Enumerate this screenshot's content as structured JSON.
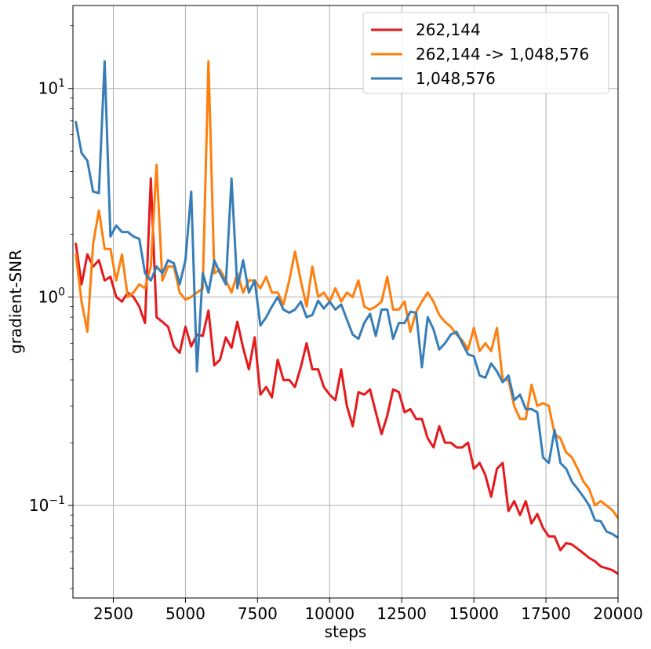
{
  "chart_data": {
    "type": "line",
    "xlabel": "steps",
    "ylabel": "gradient-SNR",
    "xlim": [
      1100,
      20000
    ],
    "ylim": [
      0.036,
      25
    ],
    "yscale": "log",
    "grid": true,
    "legend_position": "top-right",
    "x_ticks": [
      2500,
      5000,
      7500,
      10000,
      12500,
      15000,
      17500,
      20000
    ],
    "x_tick_labels": [
      "2500",
      "5000",
      "7500",
      "10000",
      "12500",
      "15000",
      "17500",
      "20000"
    ],
    "y_ticks": [
      0.1,
      1,
      10
    ],
    "y_tick_labels": [
      {
        "base": "10",
        "exp": "−1"
      },
      {
        "base": "10",
        "exp": "0"
      },
      {
        "base": "10",
        "exp": "1"
      }
    ],
    "x": [
      1200,
      1400,
      1600,
      1800,
      2000,
      2200,
      2400,
      2600,
      2800,
      3000,
      3200,
      3400,
      3600,
      3800,
      4000,
      4200,
      4400,
      4600,
      4800,
      5000,
      5200,
      5400,
      5600,
      5800,
      6000,
      6200,
      6400,
      6600,
      6800,
      7000,
      7200,
      7400,
      7600,
      7800,
      8000,
      8200,
      8400,
      8600,
      8800,
      9000,
      9200,
      9400,
      9600,
      9800,
      10000,
      10200,
      10400,
      10600,
      10800,
      11000,
      11200,
      11400,
      11600,
      11800,
      12000,
      12200,
      12400,
      12600,
      12800,
      13000,
      13200,
      13400,
      13600,
      13800,
      14000,
      14200,
      14400,
      14600,
      14800,
      15000,
      15200,
      15400,
      15600,
      15800,
      16000,
      16200,
      16400,
      16600,
      16800,
      17000,
      17200,
      17400,
      17600,
      17800,
      18000,
      18200,
      18400,
      18600,
      18800,
      19000,
      19200,
      19400,
      19600,
      19800,
      20000
    ],
    "series": [
      {
        "name": "262,144",
        "color": "#e41a1c",
        "values": [
          1.8,
          1.15,
          1.6,
          1.4,
          1.5,
          1.2,
          1.25,
          1.0,
          0.95,
          1.05,
          1.0,
          0.9,
          0.75,
          3.7,
          0.8,
          0.76,
          0.72,
          0.58,
          0.54,
          0.72,
          0.58,
          0.66,
          0.65,
          0.86,
          0.47,
          0.5,
          0.64,
          0.57,
          0.76,
          0.57,
          0.45,
          0.64,
          0.34,
          0.37,
          0.33,
          0.5,
          0.4,
          0.4,
          0.37,
          0.46,
          0.6,
          0.45,
          0.45,
          0.37,
          0.34,
          0.32,
          0.45,
          0.3,
          0.24,
          0.35,
          0.34,
          0.36,
          0.28,
          0.22,
          0.27,
          0.36,
          0.35,
          0.28,
          0.29,
          0.26,
          0.26,
          0.21,
          0.19,
          0.24,
          0.2,
          0.2,
          0.19,
          0.19,
          0.2,
          0.15,
          0.16,
          0.14,
          0.11,
          0.15,
          0.16,
          0.094,
          0.105,
          0.09,
          0.105,
          0.082,
          0.091,
          0.078,
          0.071,
          0.071,
          0.061,
          0.066,
          0.065,
          0.062,
          0.059,
          0.056,
          0.054,
          0.051,
          0.05,
          0.049,
          0.047
        ]
      },
      {
        "name": "262,144 -> 1,048,576",
        "color": "#ff7f0e",
        "values": [
          1.6,
          0.95,
          0.68,
          1.8,
          2.6,
          1.7,
          1.7,
          1.2,
          1.6,
          1.0,
          1.05,
          1.15,
          1.1,
          1.4,
          4.3,
          1.2,
          1.4,
          1.4,
          1.05,
          0.97,
          1.0,
          1.05,
          1.1,
          13.5,
          1.3,
          1.35,
          1.2,
          1.05,
          1.3,
          1.05,
          1.2,
          1.2,
          1.1,
          1.25,
          1.05,
          1.05,
          0.92,
          1.2,
          1.65,
          1.2,
          0.9,
          1.4,
          1.0,
          1.05,
          0.95,
          1.1,
          0.95,
          1.05,
          1.0,
          1.2,
          0.9,
          0.87,
          0.9,
          0.95,
          1.25,
          0.87,
          0.87,
          0.95,
          0.68,
          0.85,
          0.95,
          1.05,
          0.95,
          0.82,
          0.76,
          0.72,
          0.66,
          0.62,
          0.56,
          0.71,
          0.55,
          0.6,
          0.55,
          0.71,
          0.4,
          0.4,
          0.3,
          0.26,
          0.26,
          0.38,
          0.3,
          0.31,
          0.3,
          0.22,
          0.21,
          0.18,
          0.17,
          0.15,
          0.13,
          0.12,
          0.1,
          0.105,
          0.1,
          0.095,
          0.087
        ]
      },
      {
        "name": "1,048,576",
        "color": "#377eb8",
        "values": [
          6.9,
          4.9,
          4.5,
          3.2,
          3.15,
          13.5,
          1.95,
          2.2,
          2.05,
          2.05,
          1.95,
          1.9,
          1.3,
          1.2,
          1.4,
          1.3,
          1.5,
          1.45,
          1.15,
          1.5,
          3.2,
          0.44,
          1.3,
          1.05,
          1.5,
          1.3,
          1.15,
          3.7,
          1.1,
          1.5,
          1.05,
          1.2,
          0.73,
          0.8,
          0.9,
          1.0,
          0.87,
          0.84,
          0.87,
          0.95,
          0.8,
          0.82,
          0.96,
          0.88,
          0.95,
          0.87,
          0.92,
          0.78,
          0.66,
          0.63,
          0.75,
          0.83,
          0.65,
          0.87,
          0.87,
          0.63,
          0.75,
          0.75,
          0.85,
          0.84,
          0.46,
          0.8,
          0.7,
          0.56,
          0.6,
          0.66,
          0.68,
          0.6,
          0.53,
          0.52,
          0.42,
          0.41,
          0.48,
          0.44,
          0.39,
          0.42,
          0.32,
          0.34,
          0.29,
          0.29,
          0.28,
          0.17,
          0.16,
          0.23,
          0.16,
          0.15,
          0.13,
          0.12,
          0.11,
          0.1,
          0.085,
          0.084,
          0.075,
          0.073,
          0.07
        ]
      }
    ]
  }
}
